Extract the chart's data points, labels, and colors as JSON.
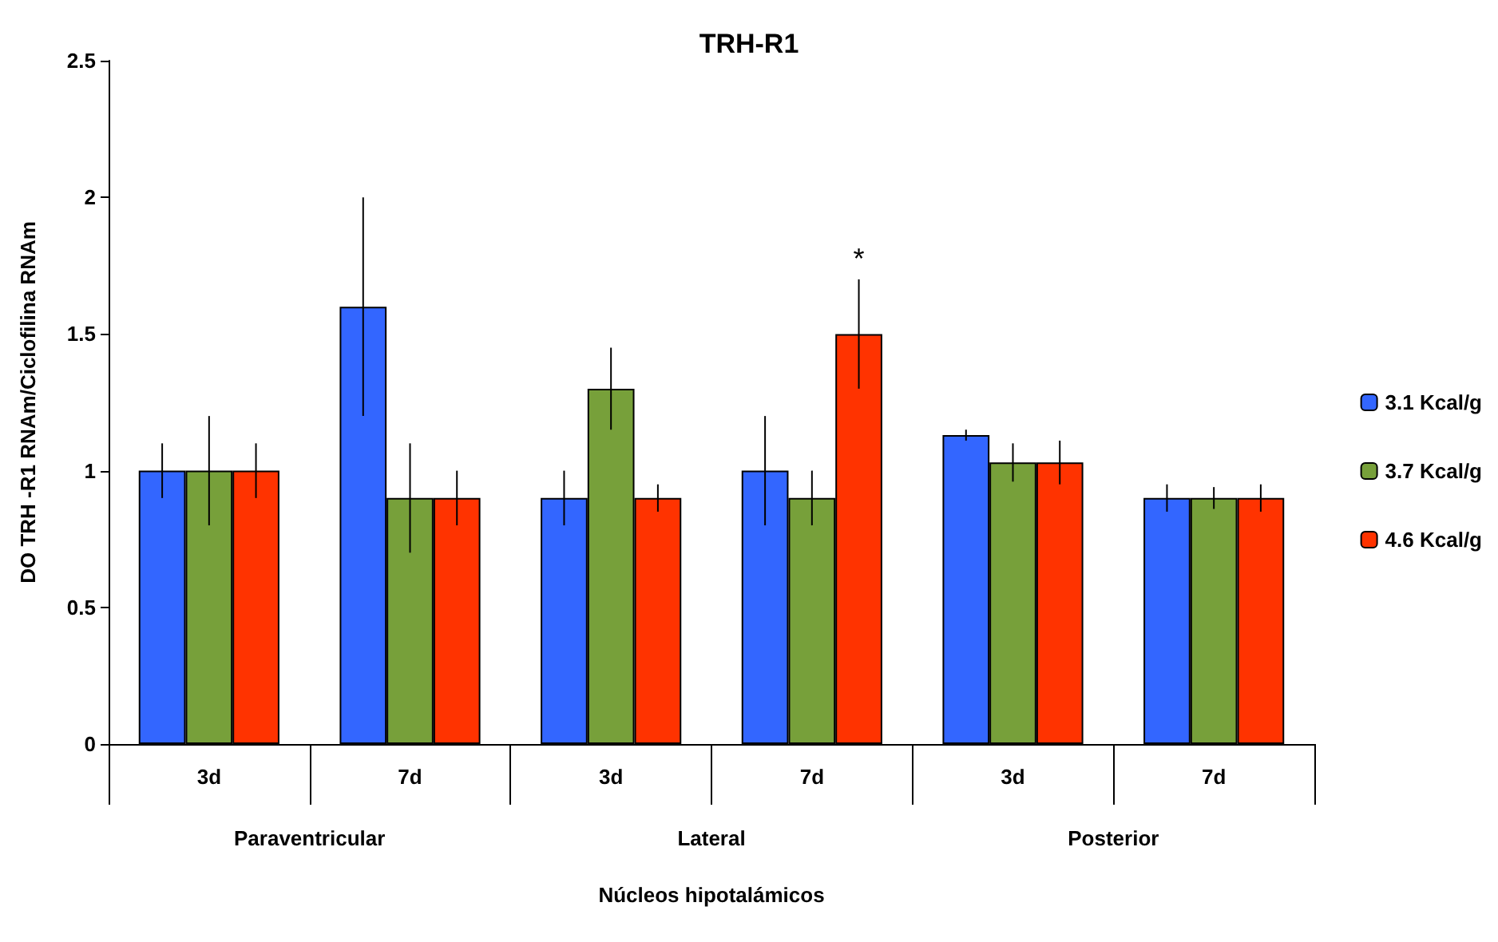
{
  "chart_data": {
    "type": "bar",
    "title": "TRH-R1",
    "xlabel": "Núcleos hipotalámicos",
    "ylabel": "DO TRH -R1 RNAm/Ciclofilina RNAm",
    "categories": [
      "3d",
      "7d",
      "3d",
      "7d",
      "3d",
      "7d"
    ],
    "series": [
      {
        "name": "3.1 Kcal/g",
        "color": "#3366ff",
        "values": [
          1.0,
          1.6,
          0.9,
          1.0,
          1.13,
          0.9
        ],
        "errors": [
          0.1,
          0.4,
          0.1,
          0.2,
          0.02,
          0.05
        ]
      },
      {
        "name": "3.7 Kcal/g",
        "color": "#77a03a",
        "values": [
          1.0,
          0.9,
          1.3,
          0.9,
          1.03,
          0.9
        ],
        "errors": [
          0.2,
          0.2,
          0.15,
          0.1,
          0.07,
          0.04
        ]
      },
      {
        "name": "4.6 Kcal/g",
        "color": "#ff3300",
        "values": [
          1.0,
          0.9,
          0.9,
          1.5,
          1.03,
          0.9
        ],
        "errors": [
          0.1,
          0.1,
          0.05,
          0.2,
          0.08,
          0.05
        ],
        "value_labels": [
          null,
          null,
          null,
          "*",
          null,
          null
        ]
      }
    ],
    "ylim": [
      0,
      2.5
    ],
    "yticks": [
      0,
      0.5,
      1,
      1.5,
      2,
      2.5
    ],
    "grid": false,
    "legend": "right",
    "annotations": [
      "Paraventricular",
      "Lateral",
      "Posterior"
    ]
  }
}
